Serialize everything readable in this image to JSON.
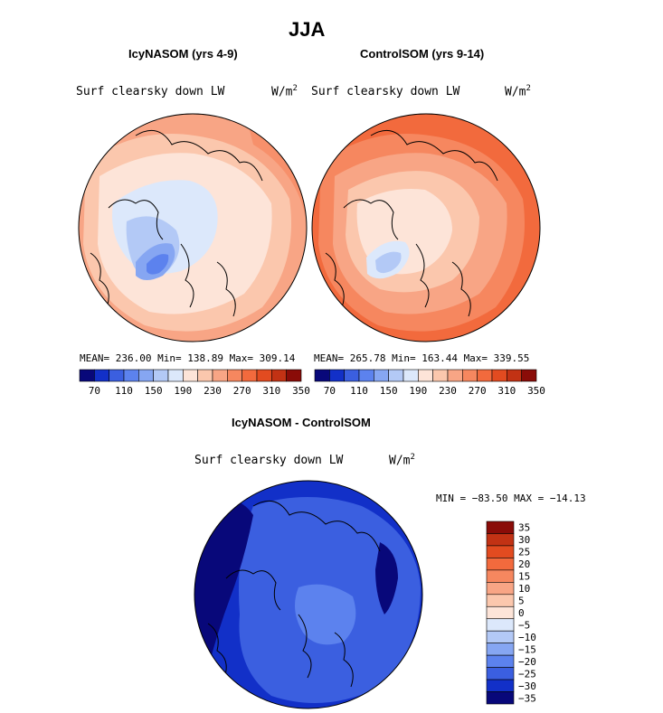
{
  "figure": {
    "title": "JJA",
    "colors": [
      "#08087a",
      "#1230c8",
      "#3b5fe0",
      "#5c82ee",
      "#86a6f2",
      "#b3c9f6",
      "#dce8fb",
      "#fde4d8",
      "#fbc7ad",
      "#f8a585",
      "#f6875f",
      "#f26a3d",
      "#e24b20",
      "#c23214",
      "#8a0c08"
    ]
  },
  "panels": [
    {
      "title": "IcyNASOM (yrs 4-9)",
      "variable": "Surf clearsky down LW",
      "units_base": "W/m",
      "units_exp": "2",
      "stats": "MEAN= 236.00  Min= 138.89  Max= 309.14",
      "colorbar_ticks": [
        "70",
        "110",
        "150",
        "190",
        "230",
        "270",
        "310",
        "350"
      ]
    },
    {
      "title": "ControlSOM (yrs 9-14)",
      "variable": "Surf clearsky down LW",
      "units_base": "W/m",
      "units_exp": "2",
      "stats": "MEAN= 265.78  Min= 163.44  Max= 339.55",
      "colorbar_ticks": [
        "70",
        "110",
        "150",
        "190",
        "230",
        "270",
        "310",
        "350"
      ]
    },
    {
      "title": "IcyNASOM - ControlSOM",
      "variable": "Surf clearsky down LW",
      "units_base": "W/m",
      "units_exp": "2",
      "stats": "MIN = −83.50 MAX = −14.13",
      "colorbar_ticks": [
        "35",
        "30",
        "25",
        "20",
        "15",
        "10",
        "5",
        "0",
        "−5",
        "−10",
        "−15",
        "−20",
        "−25",
        "−30",
        "−35"
      ]
    }
  ],
  "chart_data": [
    {
      "type": "heatmap",
      "title": "IcyNASOM (yrs 4-9)",
      "projection": "north polar stereographic",
      "mean": 236.0,
      "min": 138.89,
      "max": 309.14,
      "levels": [
        70,
        110,
        150,
        190,
        230,
        270,
        310,
        350
      ],
      "units": "W/m2"
    },
    {
      "type": "heatmap",
      "title": "ControlSOM (yrs 9-14)",
      "projection": "north polar stereographic",
      "mean": 265.78,
      "min": 163.44,
      "max": 339.55,
      "levels": [
        70,
        110,
        150,
        190,
        230,
        270,
        310,
        350
      ],
      "units": "W/m2"
    },
    {
      "type": "heatmap",
      "title": "IcyNASOM - ControlSOM",
      "projection": "north polar stereographic",
      "min": -83.5,
      "max": -14.13,
      "levels": [
        35,
        30,
        25,
        20,
        15,
        10,
        5,
        0,
        -5,
        -10,
        -15,
        -20,
        -25,
        -30,
        -35
      ],
      "units": "W/m2"
    }
  ]
}
